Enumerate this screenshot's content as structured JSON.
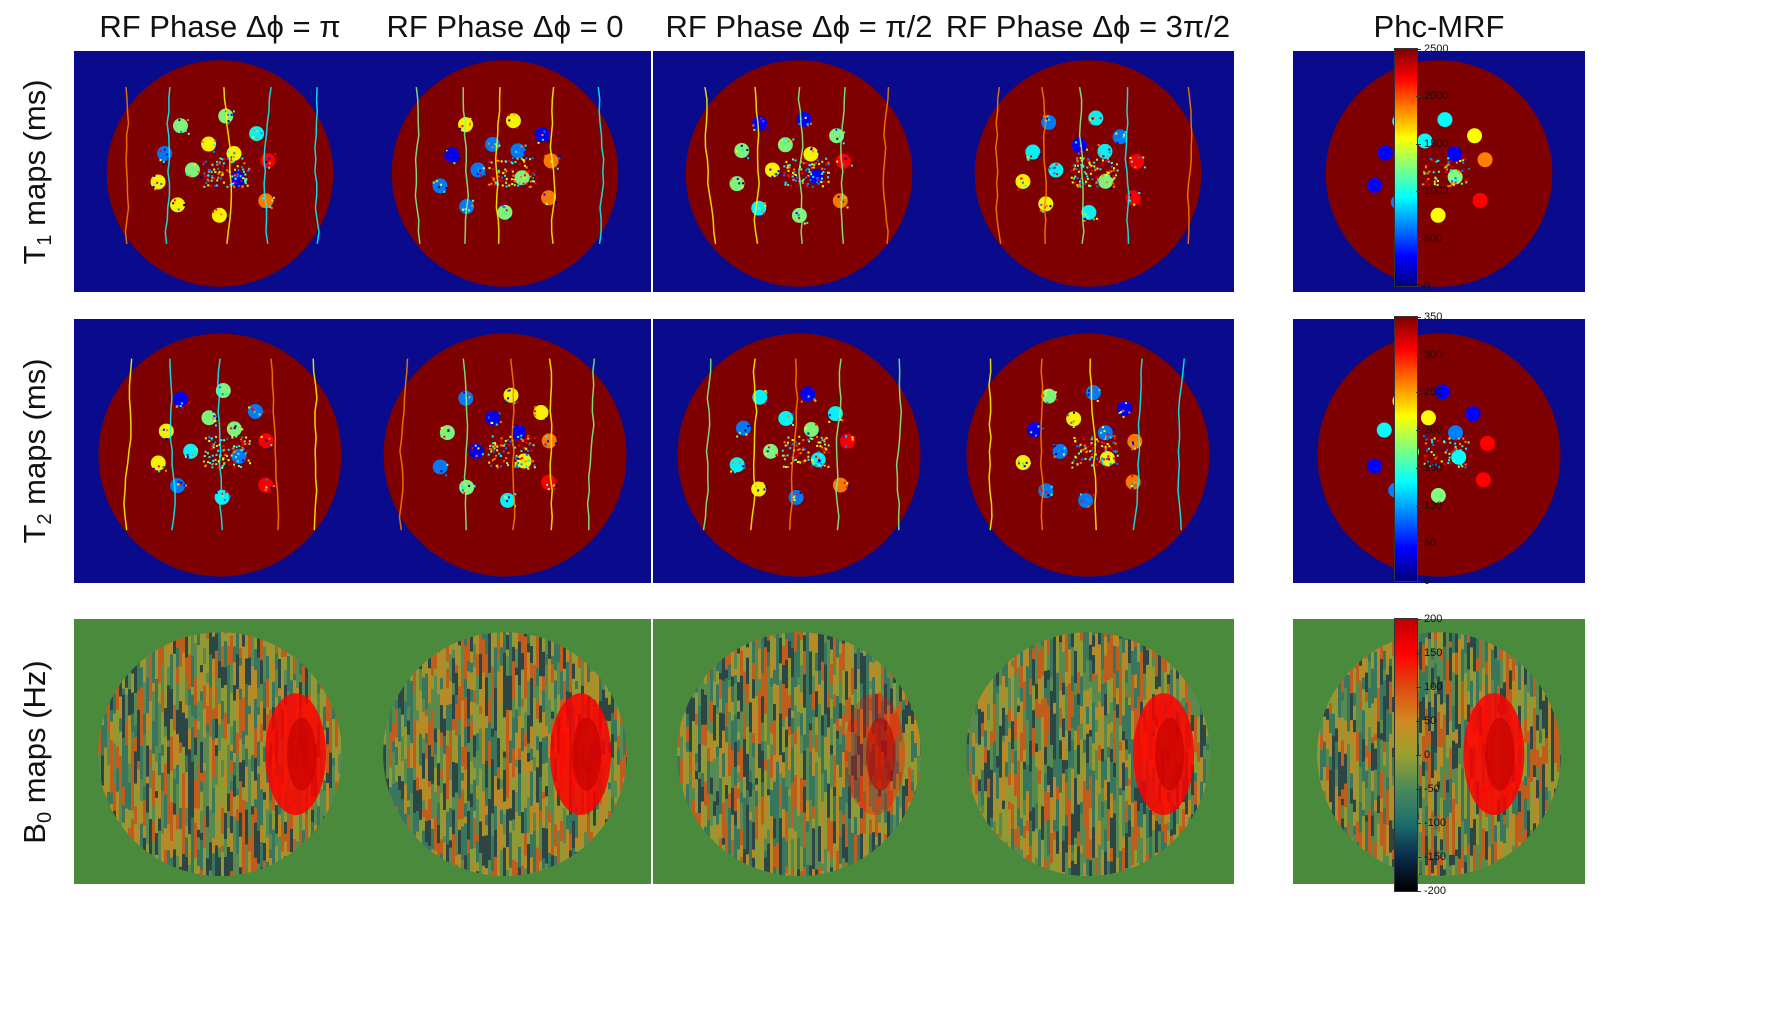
{
  "column_titles": [
    "RF Phase Δϕ = π",
    "RF Phase Δϕ = 0",
    "RF Phase Δϕ = π/2",
    "RF Phase Δϕ = 3π/2",
    "Phc-MRF"
  ],
  "rows": [
    {
      "label_main": "T",
      "label_sub": "1",
      "label_rest": " maps (ms)",
      "colormap": "jet",
      "ticks": [
        "2500",
        "2000",
        "1500",
        "1000",
        "500",
        "0"
      ]
    },
    {
      "label_main": "T",
      "label_sub": "2",
      "label_rest": " maps (ms)",
      "colormap": "jet",
      "ticks": [
        "350",
        "300",
        "250",
        "200",
        "150",
        "100",
        "50",
        "0"
      ]
    },
    {
      "label_main": "B",
      "label_sub": "0",
      "label_rest": " maps (Hz)",
      "colormap": "diverging",
      "ticks": [
        "200",
        "150",
        "100",
        "50",
        "0",
        "-50",
        "-100",
        "-150",
        "-200"
      ]
    }
  ],
  "colors": {
    "t_background": "#0a0a8c",
    "t_phantom": "#7f0000",
    "b0_background": "#4a8a3c",
    "b0_base": "#7a8a3a",
    "jet": [
      "#00007f",
      "#0000ff",
      "#007fff",
      "#00ffff",
      "#7fff7f",
      "#ffff00",
      "#ff7f00",
      "#ff0000",
      "#7f0000"
    ],
    "b0_scale": [
      "#000000",
      "#0a2a4a",
      "#1d6e6e",
      "#4a8a5a",
      "#9aa030",
      "#d08a20",
      "#e04a10",
      "#ff0000",
      "#c00000"
    ]
  }
}
